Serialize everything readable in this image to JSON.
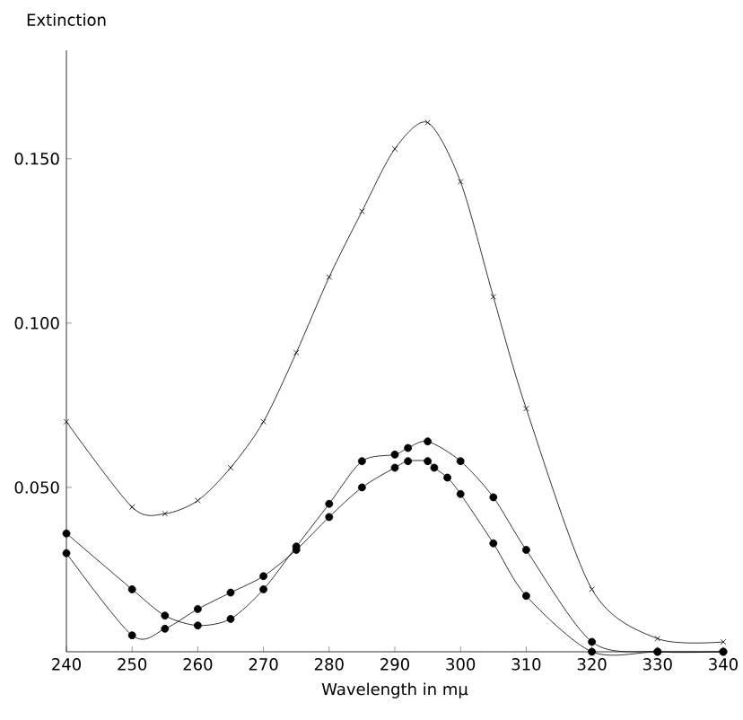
{
  "chart_data": {
    "type": "line",
    "xlabel": "Wavelength in mμ",
    "ylabel": "Extinction",
    "x": [
      240,
      250,
      255,
      260,
      265,
      270,
      275,
      280,
      285,
      290,
      295,
      300,
      305,
      310,
      320,
      330,
      340
    ],
    "xlim": [
      240,
      340
    ],
    "ylim": [
      0,
      0.183
    ],
    "xticks": [
      240,
      250,
      260,
      270,
      280,
      290,
      300,
      310,
      320,
      330,
      340
    ],
    "yticks": [
      {
        "value": 0.05,
        "label": "0.050"
      },
      {
        "value": 0.1,
        "label": "0.100"
      },
      {
        "value": 0.15,
        "label": "0.150"
      }
    ],
    "grid": false,
    "series": [
      {
        "color": "#000000",
        "marker": "cross",
        "values": [
          0.07,
          0.044,
          0.042,
          0.046,
          0.056,
          0.07,
          0.091,
          0.114,
          0.134,
          0.153,
          0.161,
          0.143,
          0.108,
          0.074,
          0.019,
          0.004,
          0.003
        ]
      },
      {
        "color": "#000000",
        "marker": "circle",
        "x": [
          240,
          250,
          255,
          260,
          265,
          270,
          275,
          280,
          285,
          290,
          292,
          295,
          300,
          305,
          310,
          320,
          330,
          340
        ],
        "values": [
          0.036,
          0.019,
          0.011,
          0.008,
          0.01,
          0.019,
          0.032,
          0.045,
          0.058,
          0.06,
          0.062,
          0.064,
          0.058,
          0.047,
          0.031,
          0.003,
          0.0,
          0.0
        ]
      },
      {
        "color": "#000000",
        "marker": "circle",
        "x": [
          240,
          250,
          255,
          260,
          265,
          270,
          275,
          280,
          285,
          290,
          292,
          295,
          296,
          298,
          300,
          305,
          310,
          320,
          330,
          340
        ],
        "values": [
          0.03,
          0.005,
          0.007,
          0.013,
          0.018,
          0.023,
          0.031,
          0.041,
          0.05,
          0.056,
          0.058,
          0.058,
          0.056,
          0.053,
          0.048,
          0.033,
          0.017,
          0.0,
          0.0,
          0.0
        ]
      }
    ]
  }
}
